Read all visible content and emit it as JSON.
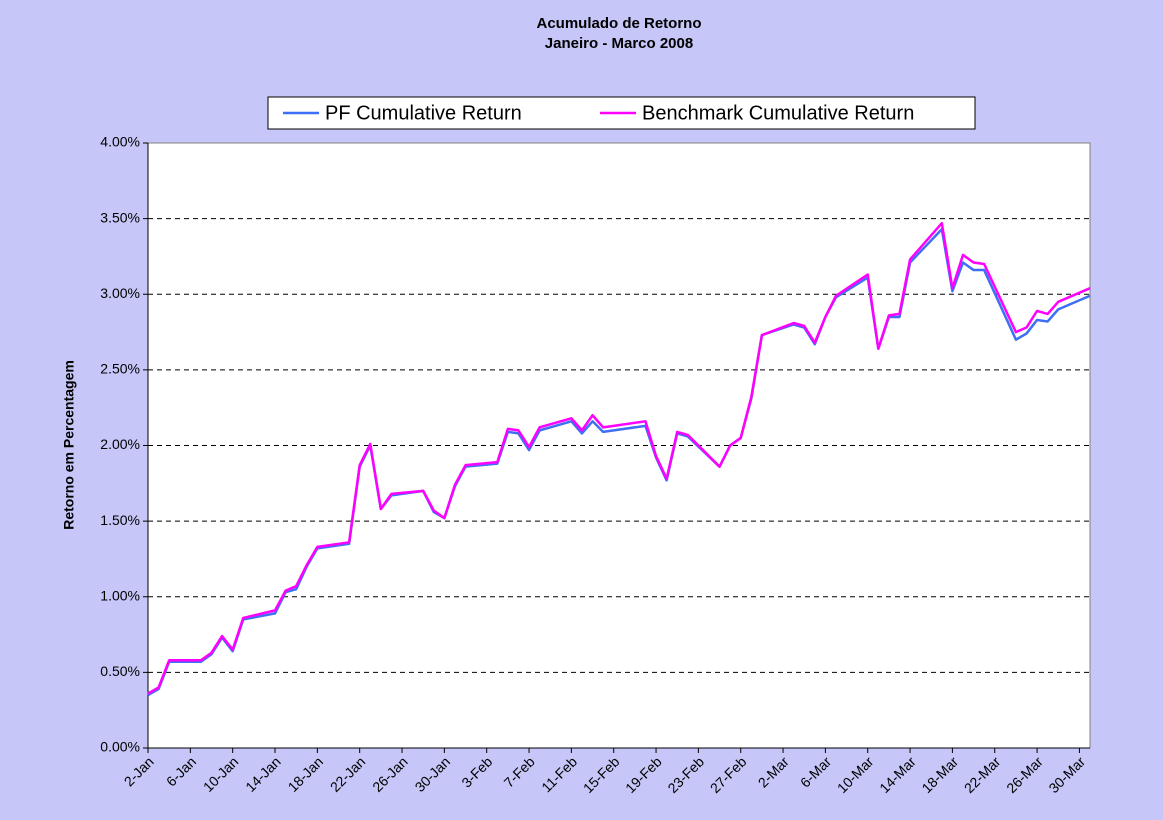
{
  "chart_data": {
    "type": "line",
    "title": "Acumulado de Retorno",
    "subtitle": "Janeiro - Marco 2008",
    "y_label": "Retorno em Percentagem",
    "x": [
      "2-Jan",
      "3-Jan",
      "4-Jan",
      "7-Jan",
      "8-Jan",
      "9-Jan",
      "10-Jan",
      "11-Jan",
      "14-Jan",
      "15-Jan",
      "16-Jan",
      "17-Jan",
      "18-Jan",
      "21-Jan",
      "22-Jan",
      "23-Jan",
      "24-Jan",
      "25-Jan",
      "28-Jan",
      "29-Jan",
      "30-Jan",
      "31-Jan",
      "1-Feb",
      "4-Feb",
      "5-Feb",
      "6-Feb",
      "7-Feb",
      "8-Feb",
      "11-Feb",
      "12-Feb",
      "13-Feb",
      "14-Feb",
      "15-Feb",
      "18-Feb",
      "19-Feb",
      "20-Feb",
      "21-Feb",
      "22-Feb",
      "25-Feb",
      "26-Feb",
      "27-Feb",
      "28-Feb",
      "29-Feb",
      "3-Mar",
      "4-Mar",
      "5-Mar",
      "6-Mar",
      "7-Mar",
      "10-Mar",
      "11-Mar",
      "12-Mar",
      "13-Mar",
      "14-Mar",
      "17-Mar",
      "18-Mar",
      "19-Mar",
      "20-Mar",
      "21-Mar",
      "24-Mar",
      "25-Mar",
      "26-Mar",
      "27-Mar",
      "28-Mar",
      "31-Mar"
    ],
    "series": [
      {
        "name": "PF Cumulative Return",
        "color": "#3f6ff5",
        "values": [
          0.35,
          0.39,
          0.57,
          0.57,
          0.62,
          0.73,
          0.64,
          0.85,
          0.89,
          1.03,
          1.05,
          1.2,
          1.32,
          1.35,
          1.86,
          2.0,
          1.58,
          1.67,
          1.7,
          1.56,
          1.52,
          1.73,
          1.86,
          1.88,
          2.09,
          2.08,
          1.97,
          2.1,
          2.16,
          2.08,
          2.16,
          2.09,
          2.1,
          2.13,
          1.92,
          1.77,
          2.08,
          2.06,
          1.86,
          2.0,
          2.05,
          2.31,
          2.73,
          2.8,
          2.78,
          2.67,
          2.85,
          2.98,
          3.11,
          2.64,
          2.85,
          2.85,
          3.21,
          3.43,
          3.02,
          3.21,
          3.16,
          3.16,
          2.7,
          2.74,
          2.83,
          2.82,
          2.9,
          2.99
        ]
      },
      {
        "name": "Benchmark Cumulative Return",
        "color": "#ff00ff",
        "values": [
          0.36,
          0.4,
          0.58,
          0.58,
          0.63,
          0.74,
          0.65,
          0.86,
          0.91,
          1.04,
          1.07,
          1.21,
          1.33,
          1.36,
          1.87,
          2.01,
          1.58,
          1.68,
          1.7,
          1.57,
          1.52,
          1.74,
          1.87,
          1.89,
          2.11,
          2.1,
          1.99,
          2.12,
          2.18,
          2.1,
          2.2,
          2.12,
          2.13,
          2.16,
          1.93,
          1.78,
          2.09,
          2.07,
          1.86,
          2.0,
          2.05,
          2.32,
          2.73,
          2.81,
          2.79,
          2.68,
          2.85,
          2.99,
          3.13,
          2.64,
          2.86,
          2.87,
          3.23,
          3.47,
          3.04,
          3.26,
          3.21,
          3.2,
          2.75,
          2.78,
          2.89,
          2.87,
          2.95,
          3.04
        ]
      }
    ],
    "xlim": [
      "2-Jan",
      "31-Mar"
    ],
    "xticks": [
      "2-Jan",
      "6-Jan",
      "10-Jan",
      "14-Jan",
      "18-Jan",
      "22-Jan",
      "26-Jan",
      "30-Jan",
      "3-Feb",
      "7-Feb",
      "11-Feb",
      "15-Feb",
      "19-Feb",
      "23-Feb",
      "27-Feb",
      "2-Mar",
      "6-Mar",
      "10-Mar",
      "14-Mar",
      "18-Mar",
      "22-Mar",
      "26-Mar",
      "30-Mar"
    ],
    "ylim": [
      0,
      4
    ],
    "yticks": [
      {
        "value": 0,
        "label": "0.00%"
      },
      {
        "value": 0.5,
        "label": "0.50%"
      },
      {
        "value": 1,
        "label": "1.00%"
      },
      {
        "value": 1.5,
        "label": "1.50%"
      },
      {
        "value": 2,
        "label": "2.00%"
      },
      {
        "value": 2.5,
        "label": "2.50%"
      },
      {
        "value": 3,
        "label": "3.00%"
      },
      {
        "value": 3.5,
        "label": "3.50%"
      },
      {
        "value": 4,
        "label": "4.00%"
      }
    ],
    "grid": true,
    "legend": "top"
  }
}
